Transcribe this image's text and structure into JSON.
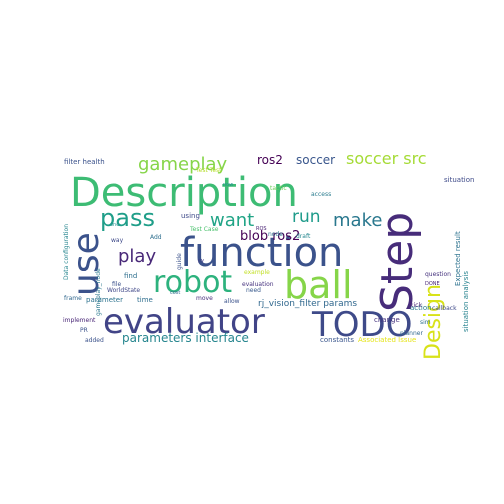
{
  "words": [
    {
      "text": "Description",
      "color": "#3dbc74"
    },
    {
      "text": "function",
      "color": "#3b528b"
    },
    {
      "text": "Step",
      "color": "#472c7a"
    },
    {
      "text": "use",
      "color": "#3b528b"
    },
    {
      "text": "ball",
      "color": "#86d549"
    },
    {
      "text": "robot",
      "color": "#2db27d"
    },
    {
      "text": "evaluator",
      "color": "#414487"
    },
    {
      "text": "TODO",
      "color": "#3e4a89"
    },
    {
      "text": "Design",
      "color": "#d8e219"
    },
    {
      "text": "pass",
      "color": "#1f9e89"
    },
    {
      "text": "gameplay",
      "color": "#86d549"
    },
    {
      "text": "soccer src",
      "color": "#a5db36"
    },
    {
      "text": "want",
      "color": "#20a486"
    },
    {
      "text": "run",
      "color": "#1e9b8a"
    },
    {
      "text": "make",
      "color": "#2a788e"
    },
    {
      "text": "play",
      "color": "#482878"
    },
    {
      "text": "ros2",
      "color": "#440154"
    },
    {
      "text": "soccer",
      "color": "#39568c"
    },
    {
      "text": "blob ros2",
      "color": "#440154"
    },
    {
      "text": "parameters interface",
      "color": "#25858e"
    },
    {
      "text": "rj_vision_filter params",
      "color": "#31688e"
    },
    {
      "text": "filter health",
      "color": "#3b528b"
    },
    {
      "text": "Expected result",
      "color": "#2c728e"
    },
    {
      "text": "situation analysis",
      "color": "#26828e"
    },
    {
      "text": "situation",
      "color": "#3e4a89"
    },
    {
      "text": "question",
      "color": "#46337e"
    },
    {
      "text": "DONE",
      "color": "#482475"
    },
    {
      "text": "action",
      "color": "#287c8e"
    },
    {
      "text": "callback",
      "color": "#3e4989"
    },
    {
      "text": "access",
      "color": "#297b8e"
    },
    {
      "text": "kick",
      "color": "#482475"
    },
    {
      "text": "change",
      "color": "#46327e"
    },
    {
      "text": "Associated Issue",
      "color": "#e5e419"
    },
    {
      "text": "constants",
      "color": "#39558c"
    },
    {
      "text": "planner",
      "color": "#31688e"
    },
    {
      "text": "sim",
      "color": "#2d708e"
    },
    {
      "text": "draft",
      "color": "#24878e"
    },
    {
      "text": "need",
      "color": "#38598c"
    },
    {
      "text": "allow",
      "color": "#3b528b"
    },
    {
      "text": "move",
      "color": "#472d7b"
    },
    {
      "text": "evaluation",
      "color": "#46327e"
    },
    {
      "text": "node",
      "color": "#2c738e"
    },
    {
      "text": "ROS",
      "color": "#482173"
    },
    {
      "text": "now",
      "color": "#21918c"
    },
    {
      "text": "example",
      "color": "#c2df23"
    },
    {
      "text": "using",
      "color": "#3e4a89"
    },
    {
      "text": "Test Case",
      "color": "#4ac16d"
    },
    {
      "text": "cost",
      "color": "#31688e"
    },
    {
      "text": "time",
      "color": "#2e6e8e"
    },
    {
      "text": "find",
      "color": "#2e6f8e"
    },
    {
      "text": "file",
      "color": "#3b518b"
    },
    {
      "text": "way",
      "color": "#3e4989"
    },
    {
      "text": "Add",
      "color": "#2e6f8e"
    },
    {
      "text": "parameter",
      "color": "#2c728e"
    },
    {
      "text": "WorldState",
      "color": "#3f4788"
    },
    {
      "text": "implement",
      "color": "#482576"
    },
    {
      "text": "PR",
      "color": "#3b528b"
    },
    {
      "text": "added",
      "color": "#3b528b"
    },
    {
      "text": "one",
      "color": "#21908d"
    },
    {
      "text": "Data configuration",
      "color": "#25858e"
    },
    {
      "text": "gameplay_node",
      "color": "#2a788e"
    },
    {
      "text": "frame",
      "color": "#31688e"
    },
    {
      "text": "guide",
      "color": "#3b528b"
    },
    {
      "text": "py",
      "color": "#433e85"
    },
    {
      "text": "tactic",
      "color": "#6ccd5a"
    },
    {
      "text": "Test Test",
      "color": "#b5de2b"
    }
  ]
}
